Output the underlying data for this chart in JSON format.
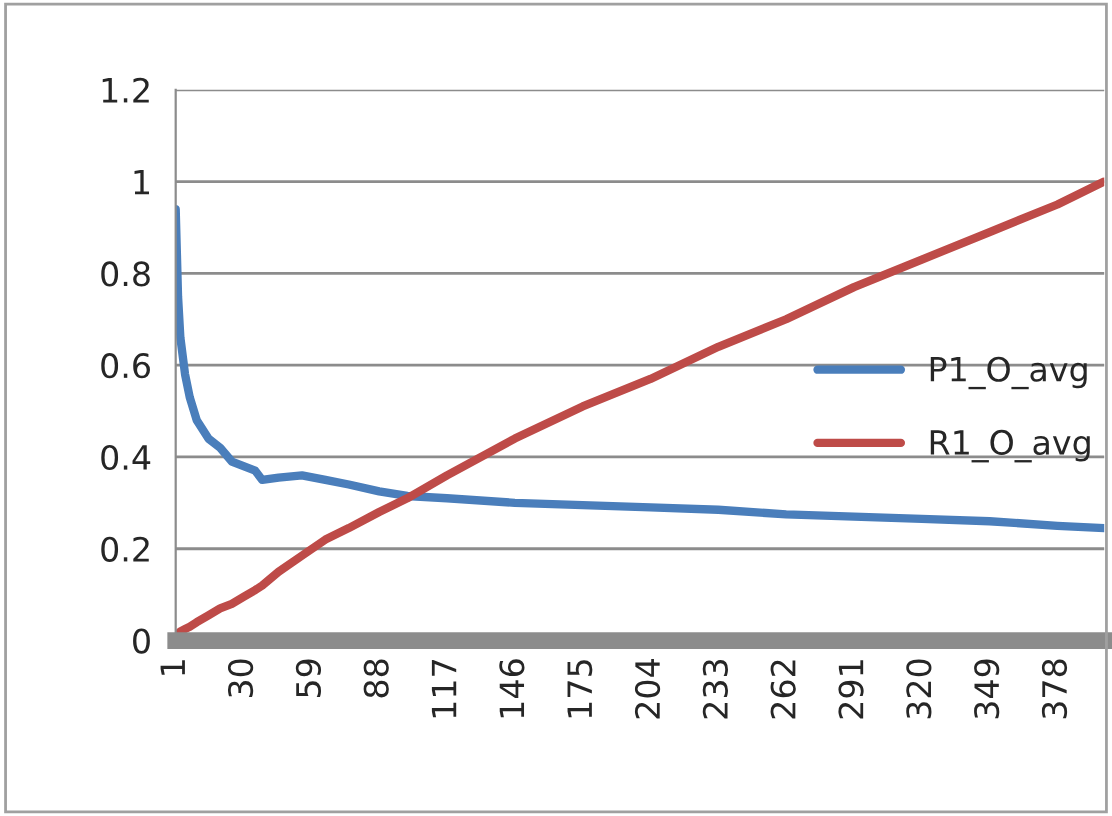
{
  "chart_data": {
    "type": "line",
    "x": [
      1,
      2,
      3,
      5,
      7,
      10,
      15,
      20,
      25,
      30,
      35,
      38,
      45,
      55,
      65,
      75,
      88,
      100,
      117,
      146,
      175,
      204,
      233,
      262,
      291,
      320,
      349,
      378,
      398
    ],
    "series": [
      {
        "name": "P1_O_avg",
        "color": "#4a7ebb",
        "values": [
          0.94,
          0.75,
          0.66,
          0.58,
          0.53,
          0.48,
          0.44,
          0.42,
          0.39,
          0.38,
          0.37,
          0.35,
          0.355,
          0.36,
          0.35,
          0.34,
          0.325,
          0.315,
          0.31,
          0.3,
          0.295,
          0.29,
          0.285,
          0.275,
          0.27,
          0.265,
          0.26,
          0.25,
          0.245
        ]
      },
      {
        "name": "R1_O_avg",
        "color": "#be4b48",
        "values": [
          0.01,
          0.015,
          0.02,
          0.025,
          0.03,
          0.04,
          0.055,
          0.07,
          0.08,
          0.095,
          0.11,
          0.12,
          0.15,
          0.185,
          0.22,
          0.245,
          0.28,
          0.31,
          0.36,
          0.44,
          0.51,
          0.57,
          0.64,
          0.7,
          0.77,
          0.83,
          0.89,
          0.95,
          1.0
        ]
      }
    ],
    "xlim": [
      1,
      398
    ],
    "xticks": [
      1,
      30,
      59,
      88,
      117,
      146,
      175,
      204,
      233,
      262,
      291,
      320,
      349,
      378
    ],
    "ylim": [
      0,
      1.2
    ],
    "yticks": [
      0,
      0.2,
      0.4,
      0.6,
      0.8,
      1,
      1.2
    ],
    "grid": "y",
    "legend": "right",
    "marker": "none",
    "line_style": "solid"
  }
}
